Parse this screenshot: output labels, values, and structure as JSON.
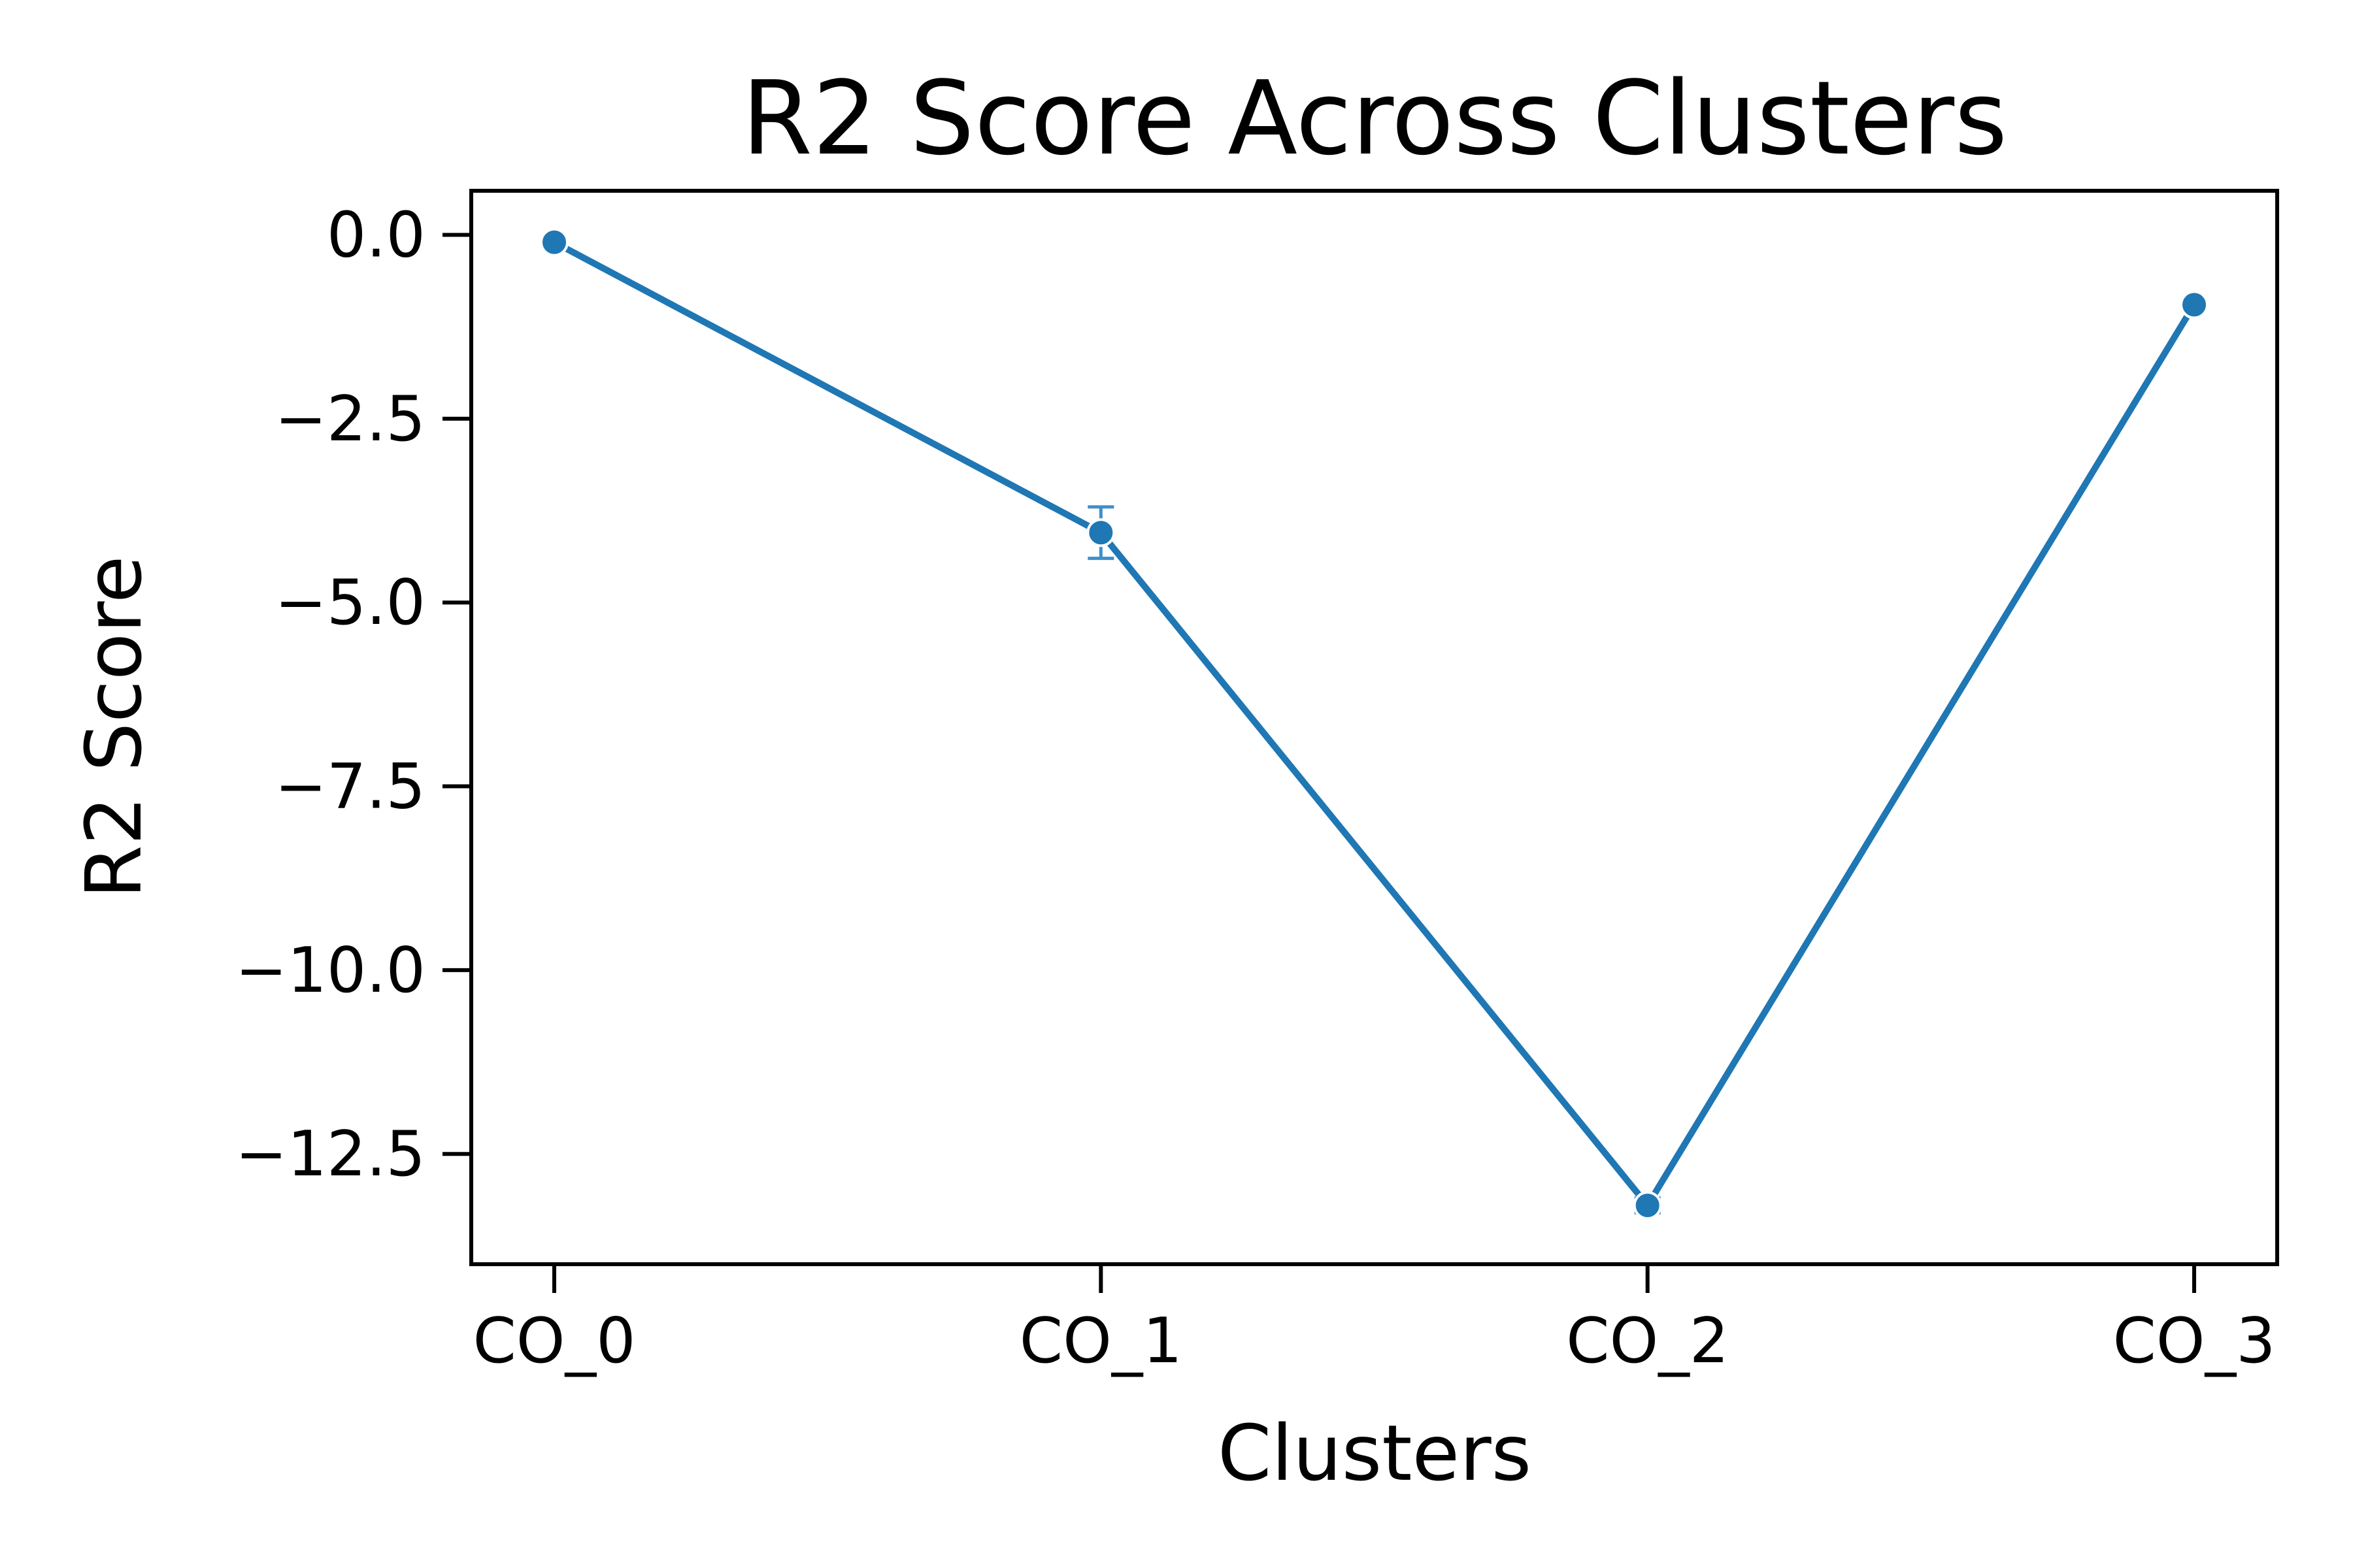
{
  "chart_data": {
    "type": "line",
    "title": "R2 Score Across Clusters",
    "xlabel": "Clusters",
    "ylabel": "R2 Score",
    "categories": [
      "CO_0",
      "CO_1",
      "CO_2",
      "CO_3"
    ],
    "series": [
      {
        "values": [
          -0.1,
          -4.05,
          -13.2,
          -0.95
        ],
        "error": [
          0.05,
          0.35,
          0.1,
          0.05
        ],
        "color": "#1f77b4",
        "marker": "circle"
      }
    ],
    "ylim": [
      -14.0,
      0.6
    ],
    "yticks": [
      0.0,
      -2.5,
      -5.0,
      -7.5,
      -10.0,
      -12.5
    ],
    "ytick_labels": [
      "0.0",
      "−2.5",
      "−5.0",
      "−7.5",
      "−10.0",
      "−12.5"
    ],
    "grid": false,
    "legend": "none"
  }
}
